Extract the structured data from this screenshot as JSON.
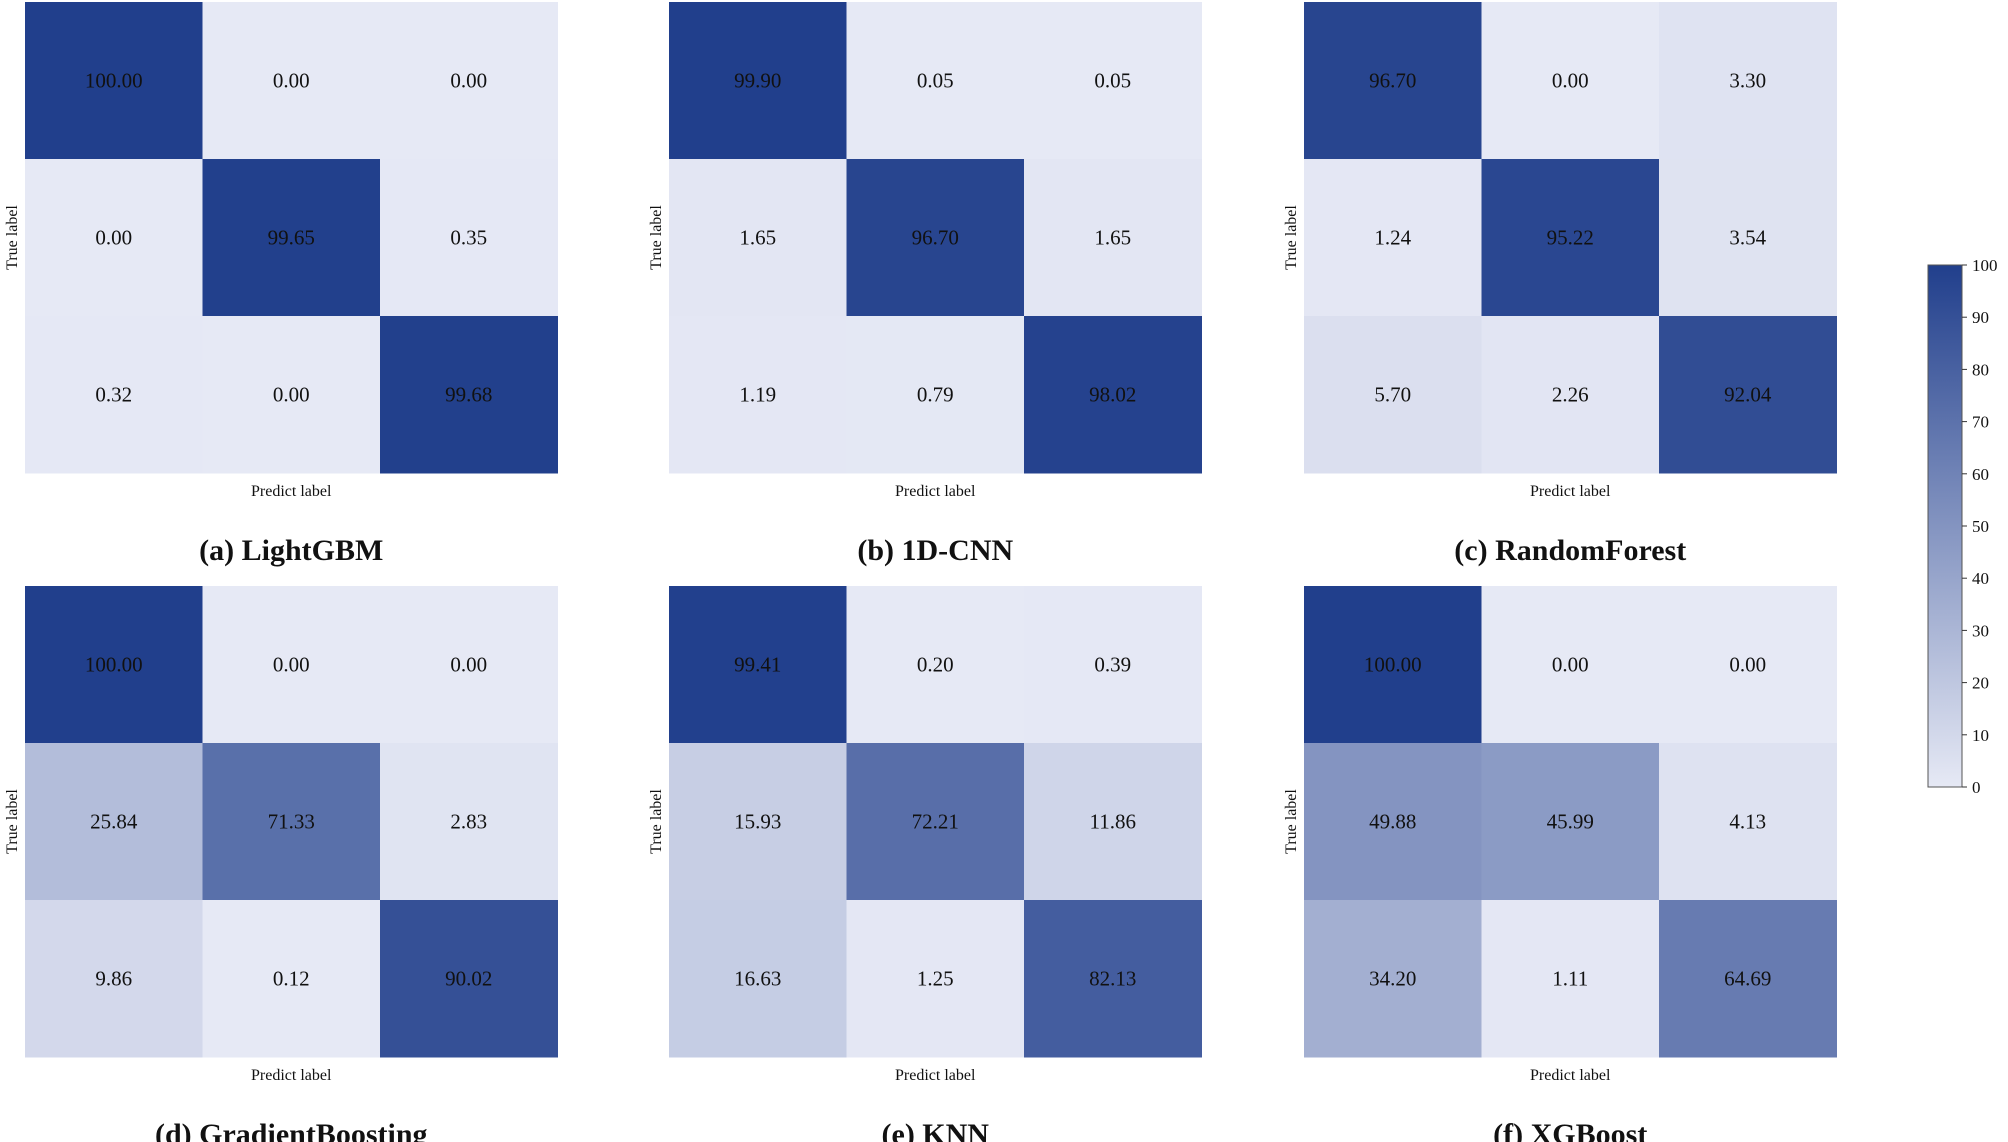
{
  "chart_data": {
    "type": "heatmap",
    "colormap": {
      "low": "#e6e9f5",
      "high": "#213f8c"
    },
    "colorbar": {
      "min": 0,
      "max": 100,
      "ticks": [
        "0",
        "10",
        "20",
        "30",
        "40",
        "50",
        "60",
        "70",
        "80",
        "90",
        "100"
      ]
    },
    "matrices": [
      {
        "id": "a",
        "caption": "(a) LightGBM",
        "xlabel": "Predict label",
        "ylabel": "True label",
        "values": [
          [
            100.0,
            0.0,
            0.0
          ],
          [
            0.0,
            99.65,
            0.35
          ],
          [
            0.32,
            0.0,
            99.68
          ]
        ],
        "labels": [
          [
            "100.00",
            "0.00",
            "0.00"
          ],
          [
            "0.00",
            "99.65",
            "0.35"
          ],
          [
            "0.32",
            "0.00",
            "99.68"
          ]
        ]
      },
      {
        "id": "b",
        "caption": "(b) 1D-CNN",
        "xlabel": "Predict label",
        "ylabel": "True label",
        "values": [
          [
            99.9,
            0.05,
            0.05
          ],
          [
            1.65,
            96.7,
            1.65
          ],
          [
            1.19,
            0.79,
            98.02
          ]
        ],
        "labels": [
          [
            "99.90",
            "0.05",
            "0.05"
          ],
          [
            "1.65",
            "96.70",
            "1.65"
          ],
          [
            "1.19",
            "0.79",
            "98.02"
          ]
        ]
      },
      {
        "id": "c",
        "caption": "(c) RandomForest",
        "xlabel": "Predict label",
        "ylabel": "True label",
        "values": [
          [
            96.7,
            0.0,
            3.3
          ],
          [
            1.24,
            95.22,
            3.54
          ],
          [
            5.7,
            2.26,
            92.04
          ]
        ],
        "labels": [
          [
            "96.70",
            "0.00",
            "3.30"
          ],
          [
            "1.24",
            "95.22",
            "3.54"
          ],
          [
            "5.70",
            "2.26",
            "92.04"
          ]
        ]
      },
      {
        "id": "d",
        "caption": "(d) GradientBoosting",
        "xlabel": "Predict label",
        "ylabel": "True label",
        "values": [
          [
            100.0,
            0.0,
            0.0
          ],
          [
            25.84,
            71.33,
            2.83
          ],
          [
            9.86,
            0.12,
            90.02
          ]
        ],
        "labels": [
          [
            "100.00",
            "0.00",
            "0.00"
          ],
          [
            "25.84",
            "71.33",
            "2.83"
          ],
          [
            "9.86",
            "0.12",
            "90.02"
          ]
        ]
      },
      {
        "id": "e",
        "caption": "(e) KNN",
        "xlabel": "Predict label",
        "ylabel": "True label",
        "values": [
          [
            99.41,
            0.2,
            0.39
          ],
          [
            15.93,
            72.21,
            11.86
          ],
          [
            16.63,
            1.25,
            82.13
          ]
        ],
        "labels": [
          [
            "99.41",
            "0.20",
            "0.39"
          ],
          [
            "15.93",
            "72.21",
            "11.86"
          ],
          [
            "16.63",
            "1.25",
            "82.13"
          ]
        ]
      },
      {
        "id": "f",
        "caption": "(f) XGBoost",
        "xlabel": "Predict label",
        "ylabel": "True label",
        "values": [
          [
            100.0,
            0.0,
            0.0
          ],
          [
            49.88,
            45.99,
            4.13
          ],
          [
            34.2,
            1.11,
            64.69
          ]
        ],
        "labels": [
          [
            "100.00",
            "0.00",
            "0.00"
          ],
          [
            "49.88",
            "45.99",
            "4.13"
          ],
          [
            "34.20",
            "1.11",
            "64.69"
          ]
        ]
      }
    ]
  }
}
